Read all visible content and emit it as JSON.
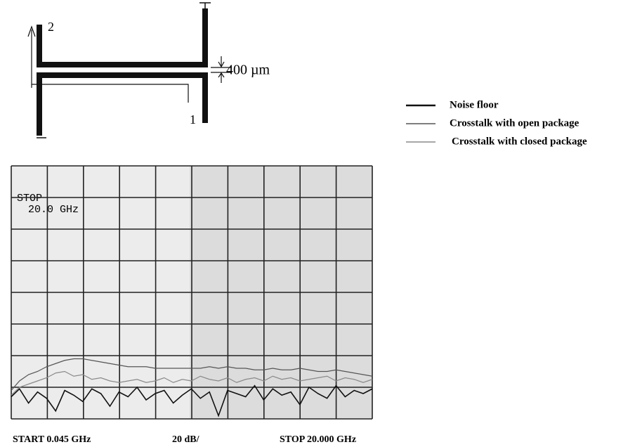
{
  "diagram": {
    "port2": "2",
    "port1": "1",
    "dimension": "400 µm"
  },
  "chart_data": {
    "type": "line",
    "annotations": [
      "STOP",
      "20.0 GHz"
    ],
    "footer": [
      "START 0.045 GHz",
      "20 dB/",
      "STOP 20.000 GHz"
    ],
    "xlim": [
      0.045,
      20
    ],
    "ylim": [
      -160,
      0
    ],
    "xticks": [
      0.045,
      2.0405,
      4.036,
      6.0315,
      8.027,
      10.0225,
      12.018,
      14.0135,
      16.009,
      18.0045,
      20
    ],
    "yticks": [
      -160,
      -140,
      -120,
      -100,
      -80,
      -60,
      -40,
      -20,
      0
    ],
    "grid": true,
    "x": [
      0.045,
      0.5,
      1,
      1.5,
      2,
      2.5,
      3,
      3.5,
      4,
      4.5,
      5,
      5.5,
      6,
      6.5,
      7,
      7.5,
      8,
      8.5,
      9,
      9.5,
      10,
      10.5,
      11,
      11.5,
      12,
      12.5,
      13,
      13.5,
      14,
      14.5,
      15,
      15.5,
      16,
      16.5,
      17,
      17.5,
      18,
      18.5,
      19,
      19.5,
      20
    ],
    "series": [
      {
        "name": "Noise floor",
        "color": "#111111",
        "values": [
          -146,
          -141,
          -150,
          -143,
          -147,
          -155,
          -142,
          -145,
          -149,
          -141,
          -144,
          -152,
          -143,
          -146,
          -140,
          -148,
          -144,
          -142,
          -150,
          -145,
          -141,
          -147,
          -143,
          -158,
          -142,
          -144,
          -146,
          -139,
          -148,
          -141,
          -145,
          -143,
          -151,
          -140,
          -144,
          -147,
          -139,
          -146,
          -142,
          -144,
          -141
        ]
      },
      {
        "name": "Crosstalk with open package",
        "color": "#555555",
        "values": [
          -142,
          -136,
          -132,
          -130,
          -127,
          -125,
          -123,
          -122,
          -122,
          -123,
          -124,
          -125,
          -126,
          -127,
          -127,
          -127,
          -128,
          -128,
          -128,
          -128,
          -128,
          -128,
          -127,
          -128,
          -127,
          -128,
          -128,
          -129,
          -129,
          -128,
          -129,
          -129,
          -128,
          -129,
          -130,
          -130,
          -129,
          -130,
          -131,
          -132,
          -133
        ]
      },
      {
        "name": "Crosstalk with closed package",
        "color": "#8a8a8a",
        "values": [
          -145,
          -140,
          -138,
          -136,
          -134,
          -131,
          -130,
          -133,
          -132,
          -135,
          -134,
          -136,
          -137,
          -136,
          -135,
          -137,
          -136,
          -134,
          -137,
          -135,
          -136,
          -133,
          -135,
          -136,
          -134,
          -137,
          -135,
          -134,
          -136,
          -133,
          -135,
          -134,
          -136,
          -135,
          -134,
          -133,
          -136,
          -134,
          -135,
          -137,
          -135
        ]
      }
    ]
  }
}
